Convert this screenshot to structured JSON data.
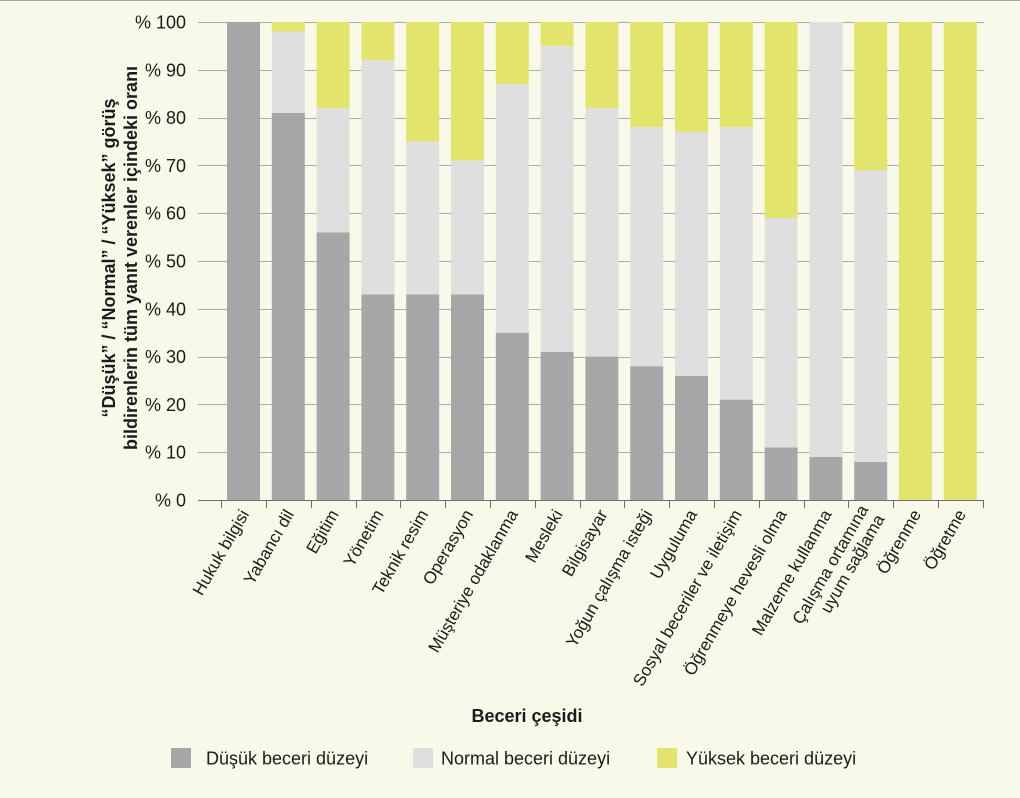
{
  "chart_data": {
    "type": "bar",
    "stacked": true,
    "title": "",
    "xlabel": "Beceri çeşidi",
    "ylabel": [
      "“Düşük” / “Normal” / “Yüksek” görüş",
      "bildirenlerin tüm yanıt verenler içindeki oranı"
    ],
    "ylim": [
      0,
      100
    ],
    "yticks": [
      0,
      10,
      20,
      30,
      40,
      50,
      60,
      70,
      80,
      90,
      100
    ],
    "ytick_labels": [
      "% 0",
      "% 10",
      "% 20",
      "% 30",
      "% 40",
      "% 50",
      "% 60",
      "% 70",
      "% 80",
      "% 90",
      "% 100"
    ],
    "grid": true,
    "legend_position": "bottom",
    "categories": [
      "Hukuk bilgisi",
      "Yabancı dil",
      "Eğitim",
      "Yönetim",
      "Teknik resim",
      "Operasyon",
      "Müşteriye odaklanma",
      "Mesleki",
      "Bilgisayar",
      "Yoğun çalışma isteği",
      "Uyguluma",
      "Sosyal beceriler ve iletişim",
      "Öğrenmeye hevesli olma",
      "Malzeme kullanma",
      "Çalışma ortamına\nuyum sağlama",
      "Öğrenme",
      "Öğretme"
    ],
    "series": [
      {
        "name": "Düşük beceri düzeyi",
        "color": "#a7a6a8",
        "values": [
          100,
          81,
          56,
          43,
          43,
          43,
          35,
          31,
          30,
          28,
          26,
          21,
          11,
          9,
          8,
          0,
          0
        ]
      },
      {
        "name": "Normal beceri düzeyi",
        "color": "#dfdfdf",
        "values": [
          0,
          17,
          26,
          49,
          32,
          28,
          52,
          64,
          52,
          50,
          51,
          57,
          48,
          91,
          61,
          0,
          0
        ]
      },
      {
        "name": "Yüksek beceri düzeyi",
        "color": "#e3e46b",
        "values": [
          0,
          2,
          18,
          8,
          25,
          29,
          13,
          5,
          18,
          22,
          23,
          22,
          41,
          0,
          31,
          100,
          100
        ]
      }
    ]
  }
}
